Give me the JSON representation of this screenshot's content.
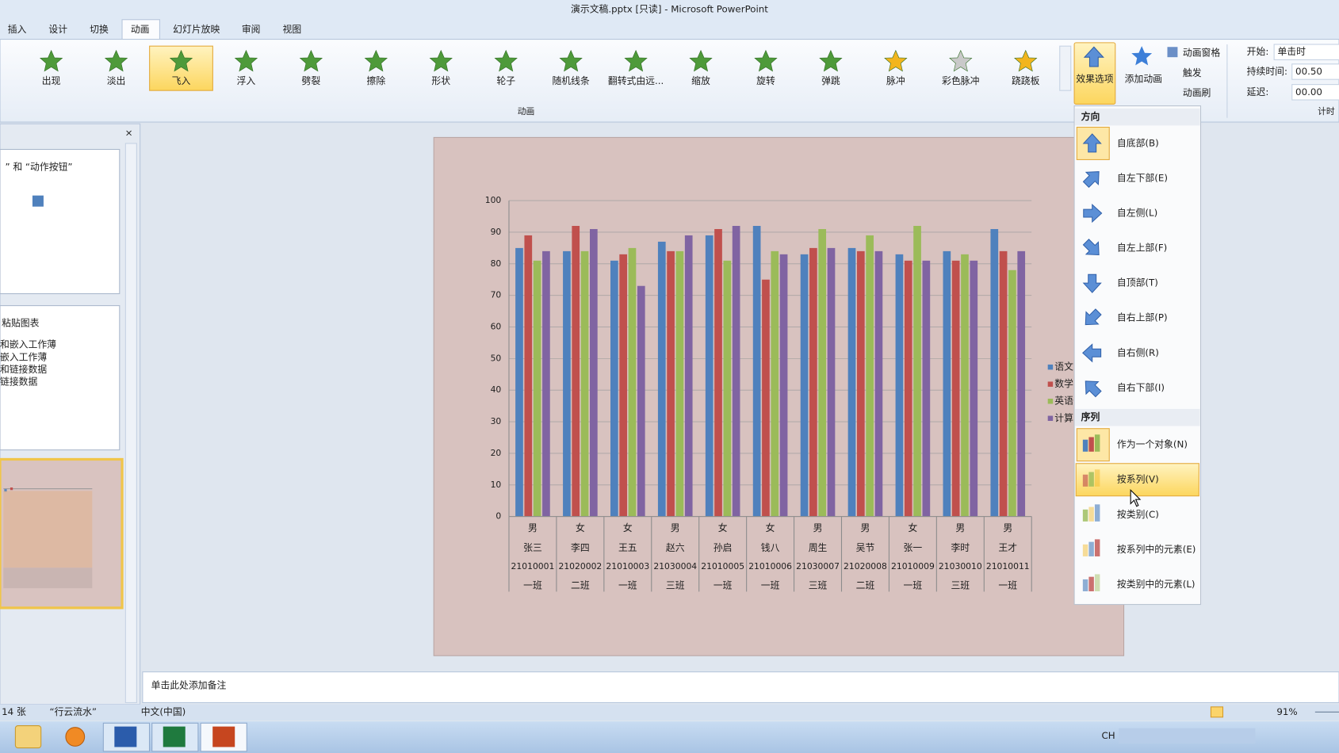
{
  "window_title": "演示文稿.pptx [只读] - Microsoft PowerPoint",
  "tabs": [
    {
      "label": "插入"
    },
    {
      "label": "设计"
    },
    {
      "label": "切换"
    },
    {
      "label": "动画",
      "selected": true
    },
    {
      "label": "幻灯片放映"
    },
    {
      "label": "审阅"
    },
    {
      "label": "视图"
    }
  ],
  "animation_gallery": {
    "items": [
      {
        "label": "出现"
      },
      {
        "label": "淡出"
      },
      {
        "label": "飞入",
        "selected": true
      },
      {
        "label": "浮入"
      },
      {
        "label": "劈裂"
      },
      {
        "label": "擦除"
      },
      {
        "label": "形状"
      },
      {
        "label": "轮子"
      },
      {
        "label": "随机线条"
      },
      {
        "label": "翻转式由远..."
      },
      {
        "label": "缩放"
      },
      {
        "label": "旋转"
      },
      {
        "label": "弹跳"
      },
      {
        "label": "脉冲"
      },
      {
        "label": "彩色脉冲"
      },
      {
        "label": "跷跷板"
      }
    ],
    "group_label": "动画"
  },
  "effect_options": "效果选项",
  "add_animation": "添加动画",
  "animation_pane": "动画窗格",
  "trigger": "触发",
  "animation_painter": "动画刷",
  "timing": {
    "start_label": "开始:",
    "start_value": "单击时",
    "duration_label": "持续时间:",
    "duration_value": "00.50",
    "delay_label": "延迟:",
    "delay_value": "00.00",
    "group_label": "计时"
  },
  "effect_menu": {
    "direction_header": "方向",
    "directions": [
      "自底部(B)",
      "自左下部(E)",
      "自左侧(L)",
      "自左上部(F)",
      "自顶部(T)",
      "自右上部(P)",
      "自右侧(R)",
      "自右下部(I)"
    ],
    "sequence_header": "序列",
    "sequences": [
      {
        "label": "作为一个对象(N)"
      },
      {
        "label": "按系列(V)",
        "highlighted": true
      },
      {
        "label": "按类别(C)"
      },
      {
        "label": "按系列中的元素(E)"
      },
      {
        "label": "按类别中的元素(L)"
      }
    ]
  },
  "slides": [
    {
      "title": "” 和 “动作按钮”"
    },
    {
      "title": "粘贴图表",
      "bullets": [
        "和嵌入工作薄",
        "嵌入工作薄",
        "和链接数据",
        "链接数据"
      ]
    }
  ],
  "chart_data": {
    "type": "bar",
    "categories": [
      [
        "男",
        "张三",
        "21010001",
        "一班"
      ],
      [
        "女",
        "李四",
        "21020002",
        "二班"
      ],
      [
        "女",
        "王五",
        "21010003",
        "一班"
      ],
      [
        "男",
        "赵六",
        "21030004",
        "三班"
      ],
      [
        "女",
        "孙启",
        "21010005",
        "一班"
      ],
      [
        "女",
        "钱八",
        "21010006",
        "一班"
      ],
      [
        "男",
        "周生",
        "21030007",
        "三班"
      ],
      [
        "男",
        "吴节",
        "21020008",
        "二班"
      ],
      [
        "女",
        "张一",
        "21010009",
        "一班"
      ],
      [
        "男",
        "李时",
        "21030010",
        "三班"
      ],
      [
        "男",
        "王才",
        "21010011",
        "一班"
      ]
    ],
    "series": [
      {
        "name": "语文",
        "color": "#4f81bd",
        "values": [
          85,
          84,
          81,
          87,
          89,
          92,
          83,
          85,
          83,
          84,
          91
        ]
      },
      {
        "name": "数学",
        "color": "#c0504d",
        "values": [
          89,
          92,
          83,
          84,
          91,
          75,
          85,
          84,
          81,
          81,
          84
        ]
      },
      {
        "name": "英语",
        "color": "#9bbb59",
        "values": [
          81,
          84,
          85,
          84,
          81,
          84,
          91,
          89,
          92,
          83,
          78
        ]
      },
      {
        "name": "计算",
        "color": "#8064a2",
        "values": [
          84,
          91,
          73,
          89,
          92,
          83,
          85,
          84,
          81,
          81,
          84
        ]
      }
    ],
    "ylim": [
      0,
      100
    ],
    "yticks": [
      0,
      10,
      20,
      30,
      40,
      50,
      60,
      70,
      80,
      90,
      100
    ],
    "grid": true
  },
  "notes_placeholder": "单击此处添加备注",
  "status_bar": {
    "slide_count": "14 张",
    "theme": "“行云流水”",
    "language": "中文(中国)",
    "zoom": "91%"
  },
  "taskbar": {
    "input_method": "CH"
  }
}
